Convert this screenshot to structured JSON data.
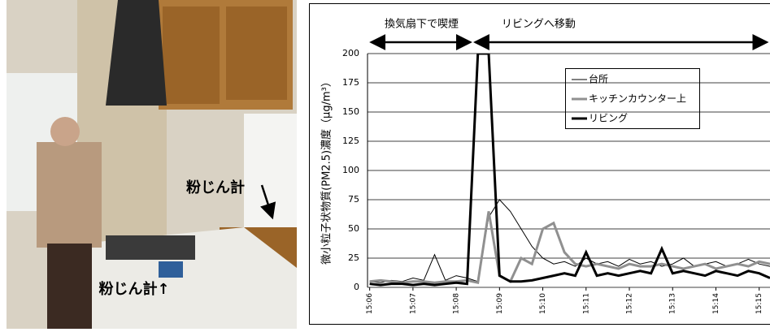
{
  "photo": {
    "labels": [
      "粉じん計",
      "粉じん計↑"
    ]
  },
  "chart_data": {
    "type": "line",
    "y_label": "微小粒子状物質(PM2.5)濃度（μg/m³）",
    "annotations": [
      {
        "text": "換気扇下で喫煙",
        "x": [
          906,
          908.4
        ]
      },
      {
        "text": "リビングへ移動",
        "x": [
          908.4,
          915.25
        ]
      }
    ],
    "x": [
      906,
      906.25,
      906.5,
      906.75,
      907,
      907.25,
      907.5,
      907.75,
      908,
      908.25,
      908.5,
      908.75,
      909,
      909.25,
      909.5,
      909.75,
      910,
      910.25,
      910.5,
      910.75,
      911,
      911.25,
      911.5,
      911.75,
      912,
      912.25,
      912.5,
      912.75,
      913,
      913.25,
      913.5,
      913.75,
      914,
      914.25,
      914.5,
      914.75,
      915,
      915.25
    ],
    "series": [
      {
        "name": "台所",
        "color": "#000000",
        "width": 1,
        "values": [
          5,
          4,
          6,
          5,
          8,
          6,
          28,
          6,
          10,
          8,
          5,
          60,
          75,
          65,
          50,
          35,
          25,
          20,
          22,
          18,
          25,
          20,
          22,
          18,
          24,
          20,
          22,
          18,
          20,
          25,
          18,
          20,
          22,
          18,
          20,
          24,
          20,
          18
        ]
      },
      {
        "name": "キッチンカウンター上",
        "color": "#909090",
        "width": 3,
        "values": [
          5,
          6,
          5,
          4,
          5,
          5,
          4,
          5,
          5,
          6,
          4,
          65,
          10,
          5,
          25,
          20,
          50,
          55,
          30,
          20,
          18,
          20,
          18,
          16,
          20,
          18,
          18,
          20,
          18,
          16,
          18,
          20,
          16,
          18,
          20,
          18,
          22,
          20
        ]
      },
      {
        "name": "リビング",
        "color": "#000000",
        "width": 3,
        "values": [
          3,
          2,
          3,
          3,
          2,
          3,
          2,
          3,
          4,
          3,
          200,
          200,
          10,
          5,
          5,
          6,
          8,
          10,
          12,
          10,
          30,
          10,
          12,
          10,
          12,
          14,
          12,
          33,
          12,
          14,
          12,
          10,
          14,
          12,
          10,
          14,
          12,
          8
        ]
      }
    ],
    "xlim": [
      905.95,
      915.25
    ],
    "xticks": [
      {
        "value": 906,
        "label": "15:06"
      },
      {
        "value": 907,
        "label": "15:07"
      },
      {
        "value": 908,
        "label": "15:08"
      },
      {
        "value": 909,
        "label": "15:09"
      },
      {
        "value": 910,
        "label": "15:10"
      },
      {
        "value": 911,
        "label": "15:11"
      },
      {
        "value": 912,
        "label": "15:12"
      },
      {
        "value": 913,
        "label": "15:13"
      },
      {
        "value": 914,
        "label": "15:14"
      },
      {
        "value": 915,
        "label": "15:15"
      }
    ],
    "ylim": [
      0,
      200
    ],
    "yticks": [
      0,
      25,
      50,
      75,
      100,
      125,
      150,
      175,
      200
    ],
    "grid": true
  }
}
